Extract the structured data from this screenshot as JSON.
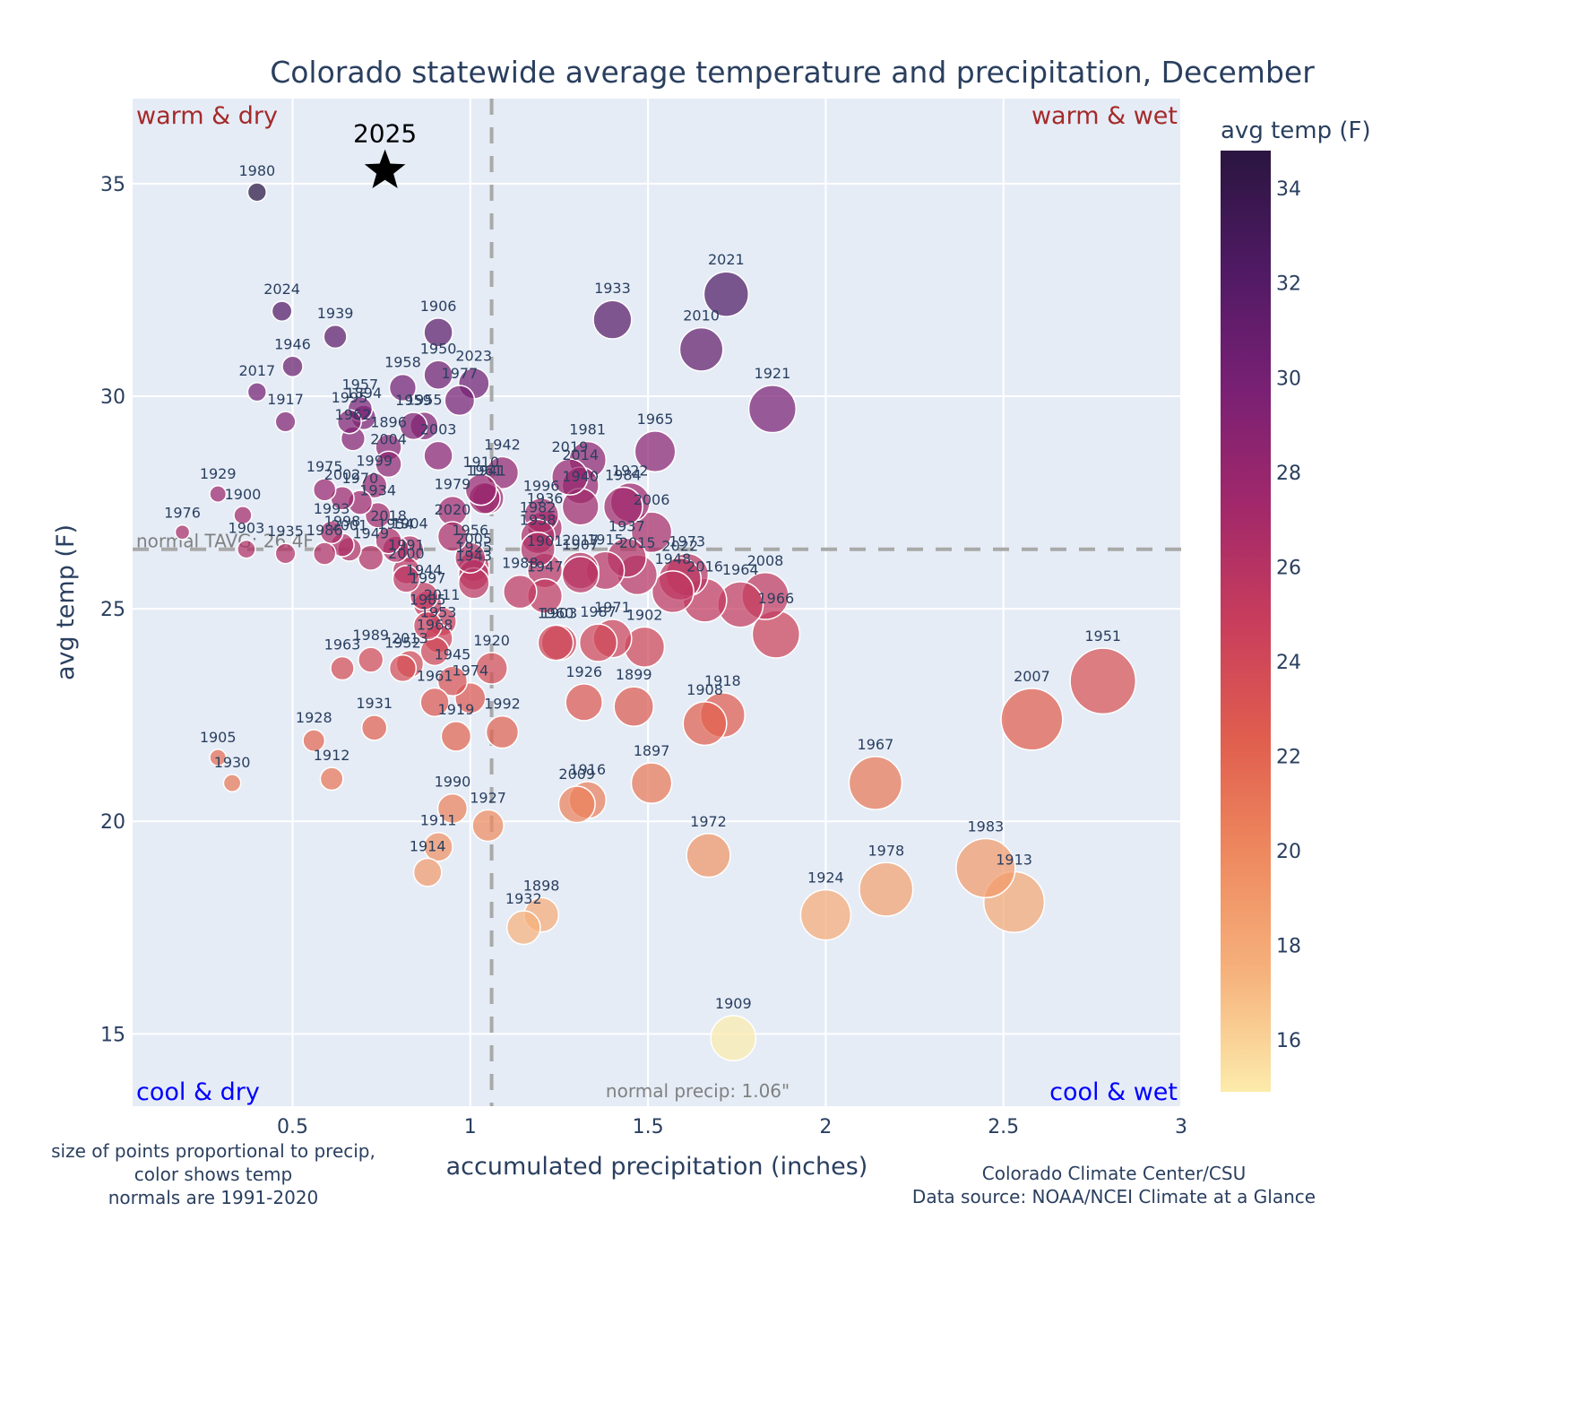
{
  "chart_data": {
    "type": "scatter",
    "title": "Colorado statewide average temperature and precipitation, December",
    "xlabel": "accumulated precipitation (inches)",
    "ylabel": "avg temp (F)",
    "xlim": [
      0.05,
      3.0
    ],
    "ylim": [
      13.3,
      37.0
    ],
    "xticks": [
      0.5,
      1,
      1.5,
      2,
      2.5,
      3
    ],
    "xtick_labels": [
      "0.5",
      "1",
      "1.5",
      "2",
      "2.5",
      "3"
    ],
    "yticks": [
      15,
      20,
      25,
      30,
      35
    ],
    "ytick_labels": [
      "15",
      "20",
      "25",
      "30",
      "35"
    ],
    "grid": true,
    "colorbar": {
      "title": "avg temp (F)",
      "range": [
        14.9,
        34.8
      ],
      "ticks": [
        16,
        18,
        20,
        22,
        24,
        26,
        28,
        30,
        32,
        34
      ],
      "tick_labels": [
        "16",
        "18",
        "20",
        "22",
        "24",
        "26",
        "28",
        "30",
        "32",
        "34"
      ],
      "colorscale": [
        "#fcebac",
        "#f6b27c",
        "#ee8a5f",
        "#e05e4e",
        "#c83d5c",
        "#a1286b",
        "#782074",
        "#4f1a63",
        "#2a1540"
      ],
      "placement": "right"
    },
    "reference_lines": {
      "normal_temp": 26.4,
      "normal_temp_label": "normal TAVG: 26.4F",
      "normal_precip": 1.06,
      "normal_precip_label": "normal precip: 1.06\""
    },
    "quadrant_labels": {
      "top_left": "warm & dry",
      "top_right": "warm & wet",
      "bottom_left": "cool & dry",
      "bottom_right": "cool & wet"
    },
    "highlight": {
      "label": "2025",
      "x": 0.76,
      "y": 35.3,
      "marker": "star"
    },
    "points": [
      {
        "year": "1980",
        "x": 0.4,
        "y": 34.8
      },
      {
        "year": "2024",
        "x": 0.47,
        "y": 32.0
      },
      {
        "year": "1939",
        "x": 0.62,
        "y": 31.4
      },
      {
        "year": "1946",
        "x": 0.5,
        "y": 30.7
      },
      {
        "year": "2017",
        "x": 0.4,
        "y": 30.1
      },
      {
        "year": "1917",
        "x": 0.48,
        "y": 29.4
      },
      {
        "year": "1906",
        "x": 0.91,
        "y": 31.5
      },
      {
        "year": "1950",
        "x": 0.91,
        "y": 30.5
      },
      {
        "year": "2023",
        "x": 1.01,
        "y": 30.3
      },
      {
        "year": "1977",
        "x": 0.97,
        "y": 29.9
      },
      {
        "year": "1958",
        "x": 0.81,
        "y": 30.2
      },
      {
        "year": "1957",
        "x": 0.69,
        "y": 29.7
      },
      {
        "year": "1894",
        "x": 0.7,
        "y": 29.5
      },
      {
        "year": "1995",
        "x": 0.66,
        "y": 29.4
      },
      {
        "year": "1962",
        "x": 0.67,
        "y": 29.0
      },
      {
        "year": "1959",
        "x": 0.84,
        "y": 29.3
      },
      {
        "year": "1955",
        "x": 0.87,
        "y": 29.3
      },
      {
        "year": "1896",
        "x": 0.77,
        "y": 28.8
      },
      {
        "year": "2003",
        "x": 0.91,
        "y": 28.6
      },
      {
        "year": "2004",
        "x": 0.77,
        "y": 28.4
      },
      {
        "year": "1999",
        "x": 0.73,
        "y": 27.9
      },
      {
        "year": "1975",
        "x": 0.59,
        "y": 27.8
      },
      {
        "year": "2002",
        "x": 0.64,
        "y": 27.6
      },
      {
        "year": "1970",
        "x": 0.69,
        "y": 27.5
      },
      {
        "year": "1934",
        "x": 0.74,
        "y": 27.2
      },
      {
        "year": "1929",
        "x": 0.29,
        "y": 27.7
      },
      {
        "year": "1900",
        "x": 0.36,
        "y": 27.2
      },
      {
        "year": "1976",
        "x": 0.19,
        "y": 26.8
      },
      {
        "year": "1903",
        "x": 0.37,
        "y": 26.4
      },
      {
        "year": "1935",
        "x": 0.48,
        "y": 26.3
      },
      {
        "year": "1993",
        "x": 0.61,
        "y": 26.8
      },
      {
        "year": "1998",
        "x": 0.64,
        "y": 26.5
      },
      {
        "year": "1986",
        "x": 0.59,
        "y": 26.3
      },
      {
        "year": "2001",
        "x": 0.66,
        "y": 26.4
      },
      {
        "year": "1949",
        "x": 0.72,
        "y": 26.2
      },
      {
        "year": "2018",
        "x": 0.77,
        "y": 26.6
      },
      {
        "year": "1954",
        "x": 0.79,
        "y": 26.4
      },
      {
        "year": "1904",
        "x": 0.83,
        "y": 26.4
      },
      {
        "year": "1991",
        "x": 0.82,
        "y": 25.9
      },
      {
        "year": "2000",
        "x": 0.82,
        "y": 25.7
      },
      {
        "year": "1944",
        "x": 0.87,
        "y": 25.3
      },
      {
        "year": "1979",
        "x": 0.95,
        "y": 27.3
      },
      {
        "year": "2020",
        "x": 0.95,
        "y": 26.7
      },
      {
        "year": "1956",
        "x": 1.0,
        "y": 26.2
      },
      {
        "year": "2005",
        "x": 1.01,
        "y": 26.0
      },
      {
        "year": "1925",
        "x": 1.01,
        "y": 25.8
      },
      {
        "year": "1943",
        "x": 1.01,
        "y": 25.6
      },
      {
        "year": "1910",
        "x": 1.03,
        "y": 27.8
      },
      {
        "year": "1961",
        "x": 1.04,
        "y": 27.6
      },
      {
        "year": "1941",
        "x": 1.05,
        "y": 27.6
      },
      {
        "year": "1942",
        "x": 1.09,
        "y": 28.2
      },
      {
        "year": "1997",
        "x": 0.88,
        "y": 25.1
      },
      {
        "year": "2011",
        "x": 0.92,
        "y": 24.7
      },
      {
        "year": "1985",
        "x": 0.88,
        "y": 24.6
      },
      {
        "year": "1953",
        "x": 0.91,
        "y": 24.3
      },
      {
        "year": "1989",
        "x": 0.72,
        "y": 23.8
      },
      {
        "year": "2013",
        "x": 0.83,
        "y": 23.7
      },
      {
        "year": "1952",
        "x": 0.81,
        "y": 23.6
      },
      {
        "year": "1963",
        "x": 0.64,
        "y": 23.6
      },
      {
        "year": "1968",
        "x": 0.9,
        "y": 24.0
      },
      {
        "year": "1945",
        "x": 0.95,
        "y": 23.3
      },
      {
        "year": "1974",
        "x": 1.0,
        "y": 22.9
      },
      {
        "year": "1920",
        "x": 1.06,
        "y": 23.6
      },
      {
        "year": "1931",
        "x": 0.73,
        "y": 22.2
      },
      {
        "year": "1928",
        "x": 0.56,
        "y": 21.9
      },
      {
        "year": "1912",
        "x": 0.61,
        "y": 21.0
      },
      {
        "year": "1905",
        "x": 0.29,
        "y": 21.5
      },
      {
        "year": "1930",
        "x": 0.33,
        "y": 20.9
      },
      {
        "year": "1919",
        "x": 0.96,
        "y": 22.0
      },
      {
        "year": "1961b",
        "x": 0.9,
        "y": 22.8
      },
      {
        "year": "1992",
        "x": 1.09,
        "y": 22.1
      },
      {
        "year": "1990",
        "x": 0.95,
        "y": 20.3
      },
      {
        "year": "1927",
        "x": 1.05,
        "y": 19.9
      },
      {
        "year": "1911",
        "x": 0.91,
        "y": 19.4
      },
      {
        "year": "1914",
        "x": 0.88,
        "y": 18.8
      },
      {
        "year": "1932",
        "x": 1.15,
        "y": 17.5
      },
      {
        "year": "1898",
        "x": 1.2,
        "y": 17.8
      },
      {
        "year": "1996",
        "x": 1.2,
        "y": 27.2
      },
      {
        "year": "1936",
        "x": 1.21,
        "y": 26.9
      },
      {
        "year": "1982",
        "x": 1.19,
        "y": 26.7
      },
      {
        "year": "1938",
        "x": 1.19,
        "y": 26.4
      },
      {
        "year": "1901",
        "x": 1.21,
        "y": 25.9
      },
      {
        "year": "1988",
        "x": 1.14,
        "y": 25.4
      },
      {
        "year": "1947",
        "x": 1.21,
        "y": 25.3
      },
      {
        "year": "2019",
        "x": 1.28,
        "y": 28.1
      },
      {
        "year": "2014",
        "x": 1.31,
        "y": 27.9
      },
      {
        "year": "1981",
        "x": 1.33,
        "y": 28.5
      },
      {
        "year": "1940",
        "x": 1.31,
        "y": 27.4
      },
      {
        "year": "1984",
        "x": 1.43,
        "y": 27.4
      },
      {
        "year": "1922",
        "x": 1.45,
        "y": 27.5
      },
      {
        "year": "2017b",
        "x": 1.31,
        "y": 25.9
      },
      {
        "year": "1907",
        "x": 1.31,
        "y": 25.8
      },
      {
        "year": "1915",
        "x": 1.38,
        "y": 25.9
      },
      {
        "year": "1937",
        "x": 1.44,
        "y": 26.2
      },
      {
        "year": "2015",
        "x": 1.47,
        "y": 25.8
      },
      {
        "year": "2006",
        "x": 1.51,
        "y": 26.8
      },
      {
        "year": "1965",
        "x": 1.52,
        "y": 28.7
      },
      {
        "year": "1933",
        "x": 1.4,
        "y": 31.8
      },
      {
        "year": "2021",
        "x": 1.72,
        "y": 32.4
      },
      {
        "year": "2010",
        "x": 1.65,
        "y": 31.1
      },
      {
        "year": "1921",
        "x": 1.85,
        "y": 29.7
      },
      {
        "year": "1973",
        "x": 1.61,
        "y": 25.8
      },
      {
        "year": "2022",
        "x": 1.59,
        "y": 25.7
      },
      {
        "year": "1948",
        "x": 1.57,
        "y": 25.4
      },
      {
        "year": "2016",
        "x": 1.66,
        "y": 25.2
      },
      {
        "year": "1964",
        "x": 1.76,
        "y": 25.1
      },
      {
        "year": "2008",
        "x": 1.83,
        "y": 25.3
      },
      {
        "year": "1966",
        "x": 1.86,
        "y": 24.4
      },
      {
        "year": "1960",
        "x": 1.24,
        "y": 24.2
      },
      {
        "year": "1903b",
        "x": 1.25,
        "y": 24.2
      },
      {
        "year": "1987",
        "x": 1.36,
        "y": 24.2
      },
      {
        "year": "1971",
        "x": 1.4,
        "y": 24.3
      },
      {
        "year": "1902",
        "x": 1.49,
        "y": 24.1
      },
      {
        "year": "1926",
        "x": 1.32,
        "y": 22.8
      },
      {
        "year": "1899",
        "x": 1.46,
        "y": 22.7
      },
      {
        "year": "1908",
        "x": 1.66,
        "y": 22.3
      },
      {
        "year": "1918",
        "x": 1.71,
        "y": 22.5
      },
      {
        "year": "2009",
        "x": 1.3,
        "y": 20.4
      },
      {
        "year": "1916",
        "x": 1.33,
        "y": 20.5
      },
      {
        "year": "1897",
        "x": 1.51,
        "y": 20.9
      },
      {
        "year": "1972",
        "x": 1.67,
        "y": 19.2
      },
      {
        "year": "1909",
        "x": 1.74,
        "y": 14.9
      },
      {
        "year": "1951",
        "x": 2.78,
        "y": 23.3
      },
      {
        "year": "2007",
        "x": 2.58,
        "y": 22.4
      },
      {
        "year": "1967",
        "x": 2.14,
        "y": 20.9
      },
      {
        "year": "1983",
        "x": 2.45,
        "y": 18.9
      },
      {
        "year": "1913",
        "x": 2.53,
        "y": 18.1
      },
      {
        "year": "1978",
        "x": 2.17,
        "y": 18.4
      },
      {
        "year": "1924",
        "x": 2.0,
        "y": 17.8
      }
    ]
  },
  "notes": {
    "left_line1": "size of points proportional to precip,",
    "left_line2": "color shows temp",
    "left_line3": "normals are 1991-2020",
    "right_line1": "Colorado Climate Center/CSU",
    "right_line2": "Data source: NOAA/NCEI Climate at a Glance"
  }
}
